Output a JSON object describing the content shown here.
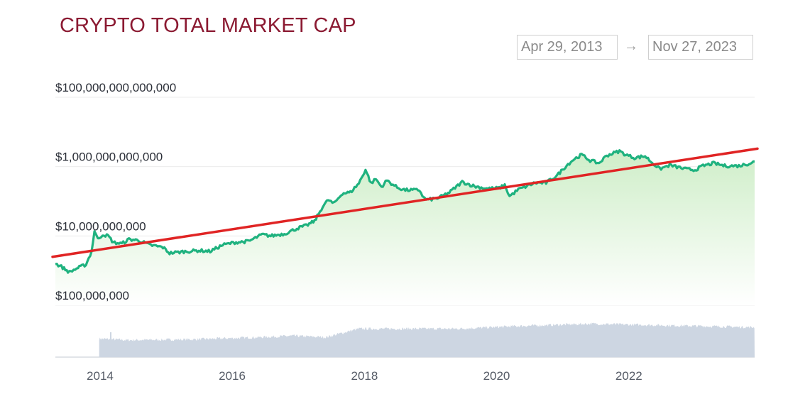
{
  "header": {
    "title": "CRYPTO TOTAL MARKET CAP",
    "date_range": {
      "start": "Apr 29, 2013",
      "arrow": "→",
      "end": "Nov 27, 2023"
    }
  },
  "colors": {
    "title": "#8b1a32",
    "line": "#1fb27f",
    "trend": "#e02424",
    "area_top": "#cdeec6",
    "volume": "#cdd6e2",
    "grid": "#ececec"
  },
  "chart_data": {
    "type": "line",
    "title": "CRYPTO TOTAL MARKET CAP",
    "y_scale": "log",
    "ylim": [
      100000000,
      100000000000000
    ],
    "y_ticks": [
      {
        "value": 100000000,
        "label": "$100,000,000"
      },
      {
        "value": 10000000000,
        "label": "$10,000,000,000"
      },
      {
        "value": 1000000000000,
        "label": "$1,000,000,000,000"
      },
      {
        "value": 100000000000000,
        "label": "$100,000,000,000,000"
      }
    ],
    "x_range": [
      "2013-04-29",
      "2023-11-27"
    ],
    "x_ticks": [
      {
        "date": "2014-01-01",
        "label": "2014"
      },
      {
        "date": "2016-01-01",
        "label": "2016"
      },
      {
        "date": "2018-01-01",
        "label": "2018"
      },
      {
        "date": "2020-01-01",
        "label": "2020"
      },
      {
        "date": "2022-01-01",
        "label": "2022"
      }
    ],
    "grid": true,
    "legend": "none",
    "series": [
      {
        "points": [
          [
            "2013-04-29",
            1600000000
          ],
          [
            "2013-06-01",
            1300000000
          ],
          [
            "2013-07-15",
            900000000
          ],
          [
            "2013-09-01",
            1200000000
          ],
          [
            "2013-10-15",
            1500000000
          ],
          [
            "2013-11-15",
            3500000000
          ],
          [
            "2013-12-01",
            14000000000
          ],
          [
            "2013-12-20",
            8000000000
          ],
          [
            "2014-01-15",
            11000000000
          ],
          [
            "2014-02-15",
            10000000000
          ],
          [
            "2014-03-15",
            6500000000
          ],
          [
            "2014-05-01",
            6000000000
          ],
          [
            "2014-06-10",
            8000000000
          ],
          [
            "2014-08-01",
            7500000000
          ],
          [
            "2014-10-01",
            5500000000
          ],
          [
            "2014-12-15",
            4700000000
          ],
          [
            "2015-01-20",
            3200000000
          ],
          [
            "2015-04-01",
            3500000000
          ],
          [
            "2015-07-01",
            3800000000
          ],
          [
            "2015-09-01",
            3600000000
          ],
          [
            "2015-11-10",
            5500000000
          ],
          [
            "2016-01-15",
            6500000000
          ],
          [
            "2016-04-01",
            7000000000
          ],
          [
            "2016-06-15",
            11000000000
          ],
          [
            "2016-08-01",
            10000000000
          ],
          [
            "2016-10-15",
            11500000000
          ],
          [
            "2016-12-31",
            17000000000
          ],
          [
            "2017-02-15",
            20000000000
          ],
          [
            "2017-04-01",
            27000000000
          ],
          [
            "2017-05-15",
            70000000000
          ],
          [
            "2017-06-15",
            110000000000
          ],
          [
            "2017-07-15",
            85000000000
          ],
          [
            "2017-09-01",
            170000000000
          ],
          [
            "2017-10-15",
            180000000000
          ],
          [
            "2017-12-01",
            330000000000
          ],
          [
            "2018-01-07",
            820000000000
          ],
          [
            "2018-02-06",
            330000000000
          ],
          [
            "2018-03-05",
            440000000000
          ],
          [
            "2018-04-05",
            260000000000
          ],
          [
            "2018-05-05",
            400000000000
          ],
          [
            "2018-07-01",
            250000000000
          ],
          [
            "2018-08-15",
            210000000000
          ],
          [
            "2018-11-01",
            210000000000
          ],
          [
            "2018-11-25",
            125000000000
          ],
          [
            "2018-12-15",
            110000000000
          ],
          [
            "2019-02-15",
            125000000000
          ],
          [
            "2019-04-15",
            180000000000
          ],
          [
            "2019-06-25",
            360000000000
          ],
          [
            "2019-09-01",
            270000000000
          ],
          [
            "2019-11-15",
            230000000000
          ],
          [
            "2020-01-15",
            240000000000
          ],
          [
            "2020-02-15",
            290000000000
          ],
          [
            "2020-03-13",
            140000000000
          ],
          [
            "2020-05-01",
            220000000000
          ],
          [
            "2020-08-01",
            340000000000
          ],
          [
            "2020-10-01",
            340000000000
          ],
          [
            "2020-12-01",
            560000000000
          ],
          [
            "2021-01-15",
            1000000000000
          ],
          [
            "2021-03-01",
            1600000000000
          ],
          [
            "2021-04-15",
            2200000000000
          ],
          [
            "2021-06-01",
            1500000000000
          ],
          [
            "2021-07-20",
            1250000000000
          ],
          [
            "2021-09-01",
            2100000000000
          ],
          [
            "2021-11-10",
            2800000000000
          ],
          [
            "2021-12-15",
            2200000000000
          ],
          [
            "2022-02-01",
            1800000000000
          ],
          [
            "2022-04-01",
            2000000000000
          ],
          [
            "2022-05-10",
            1300000000000
          ],
          [
            "2022-06-20",
            850000000000
          ],
          [
            "2022-08-15",
            1100000000000
          ],
          [
            "2022-11-10",
            850000000000
          ],
          [
            "2023-01-01",
            800000000000
          ],
          [
            "2023-02-15",
            1050000000000
          ],
          [
            "2023-04-15",
            1250000000000
          ],
          [
            "2023-06-15",
            1050000000000
          ],
          [
            "2023-09-01",
            1050000000000
          ],
          [
            "2023-10-20",
            1200000000000
          ],
          [
            "2023-11-27",
            1400000000000
          ]
        ]
      },
      {
        "type": "trend-line",
        "points": [
          [
            "2013-04-29",
            2500000000
          ],
          [
            "2023-11-27",
            3300000000000
          ]
        ]
      }
    ],
    "volume": {
      "type": "area",
      "start": "2013-12-27",
      "end": "2023-11-27",
      "spike": [
        "2014-03-01",
        0.35
      ],
      "levels": [
        [
          "2013-12-27",
          0.26
        ],
        [
          "2014-06-01",
          0.24
        ],
        [
          "2015-06-01",
          0.25
        ],
        [
          "2016-06-01",
          0.28
        ],
        [
          "2016-12-01",
          0.3
        ],
        [
          "2017-06-01",
          0.28
        ],
        [
          "2017-12-01",
          0.4
        ],
        [
          "2018-06-01",
          0.4
        ],
        [
          "2019-06-01",
          0.4
        ],
        [
          "2020-06-01",
          0.44
        ],
        [
          "2021-06-01",
          0.47
        ],
        [
          "2022-06-01",
          0.45
        ],
        [
          "2023-06-01",
          0.43
        ],
        [
          "2023-11-27",
          0.42
        ]
      ]
    }
  }
}
